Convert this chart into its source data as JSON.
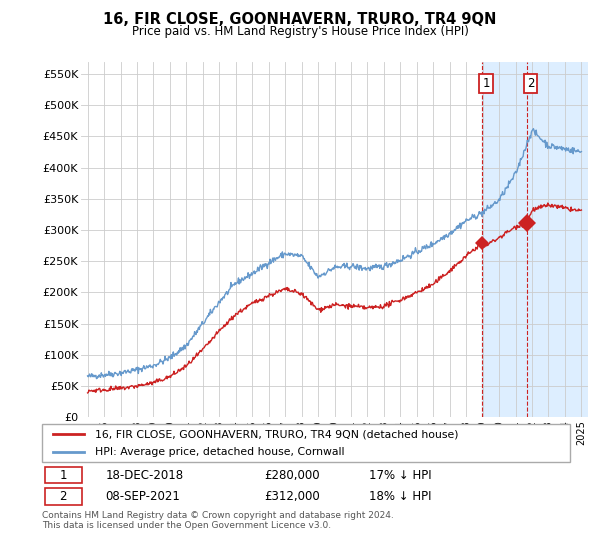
{
  "title": "16, FIR CLOSE, GOONHAVERN, TRURO, TR4 9QN",
  "subtitle": "Price paid vs. HM Land Registry's House Price Index (HPI)",
  "ylabel_ticks": [
    "£0",
    "£50K",
    "£100K",
    "£150K",
    "£200K",
    "£250K",
    "£300K",
    "£350K",
    "£400K",
    "£450K",
    "£500K",
    "£550K"
  ],
  "ytick_vals": [
    0,
    50000,
    100000,
    150000,
    200000,
    250000,
    300000,
    350000,
    400000,
    450000,
    500000,
    550000
  ],
  "ylim": [
    0,
    570000
  ],
  "hpi_color": "#6699cc",
  "price_color": "#cc2222",
  "shaded_color": "#ddeeff",
  "marker1_year": 2018.96,
  "marker1_price": 280000,
  "marker2_year": 2021.68,
  "marker2_price": 312000,
  "legend_house": "16, FIR CLOSE, GOONHAVERN, TRURO, TR4 9QN (detached house)",
  "legend_hpi": "HPI: Average price, detached house, Cornwall",
  "footer": "Contains HM Land Registry data © Crown copyright and database right 2024.\nThis data is licensed under the Open Government Licence v3.0.",
  "background_color": "#ffffff",
  "grid_color": "#cccccc"
}
